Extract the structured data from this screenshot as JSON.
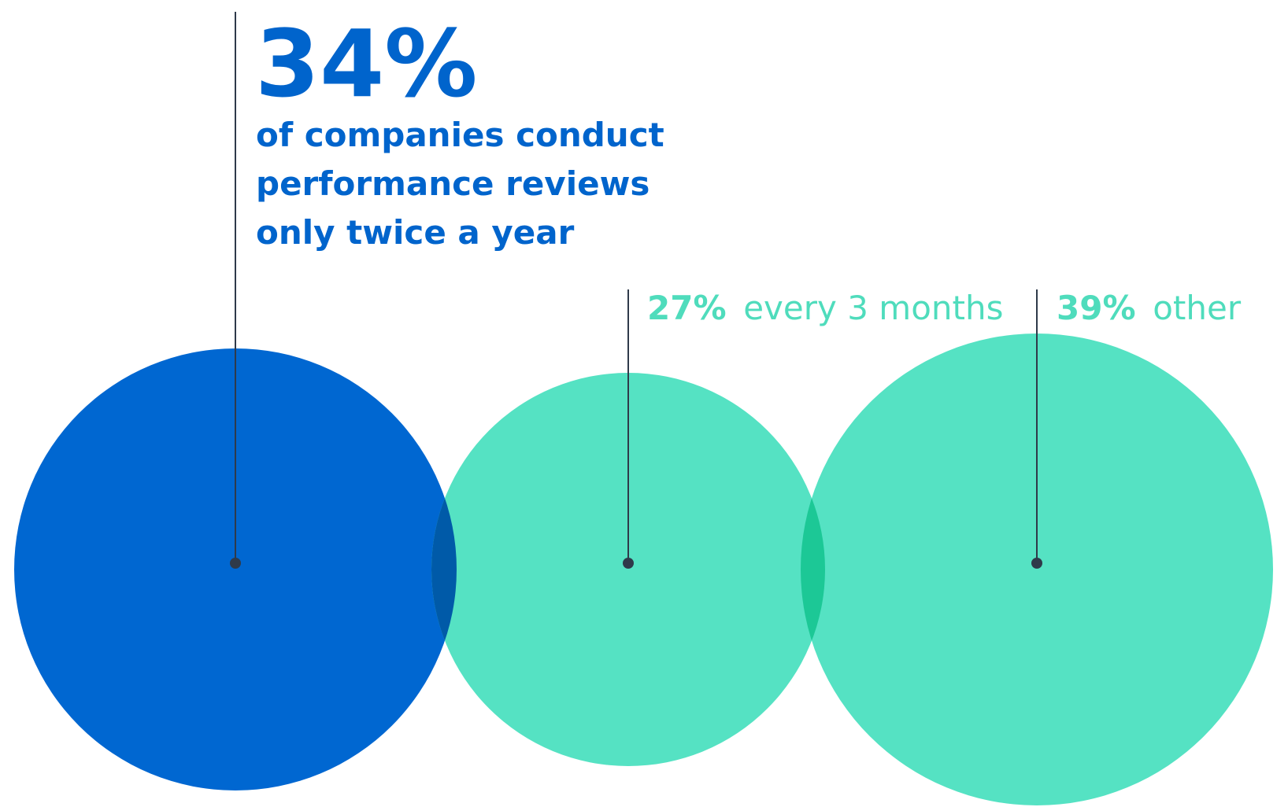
{
  "chart_data": {
    "type": "bubble",
    "series": [
      {
        "name": "only twice a year",
        "value_label": "34%",
        "value": 34,
        "description_lines": [
          "of companies conduct",
          "performance reviews",
          "only twice a year"
        ],
        "color": "#0067d1",
        "text_color": "#0064cc"
      },
      {
        "name": "every 3 months",
        "value_label": "27%",
        "value": 27,
        "label_text": "every 3 months",
        "color": "#55e2c3",
        "text_color": "#4fdcbc"
      },
      {
        "name": "other",
        "value_label": "39%",
        "value": 39,
        "label_text": "other",
        "color": "#55e2c3",
        "text_color": "#4fdcbc"
      }
    ],
    "overlap_colors": {
      "blue_teal": "#005aa8",
      "teal_teal": "#1cc896"
    },
    "leader_color": "#2f3a4a",
    "dot_color": "#2f3a4a"
  }
}
